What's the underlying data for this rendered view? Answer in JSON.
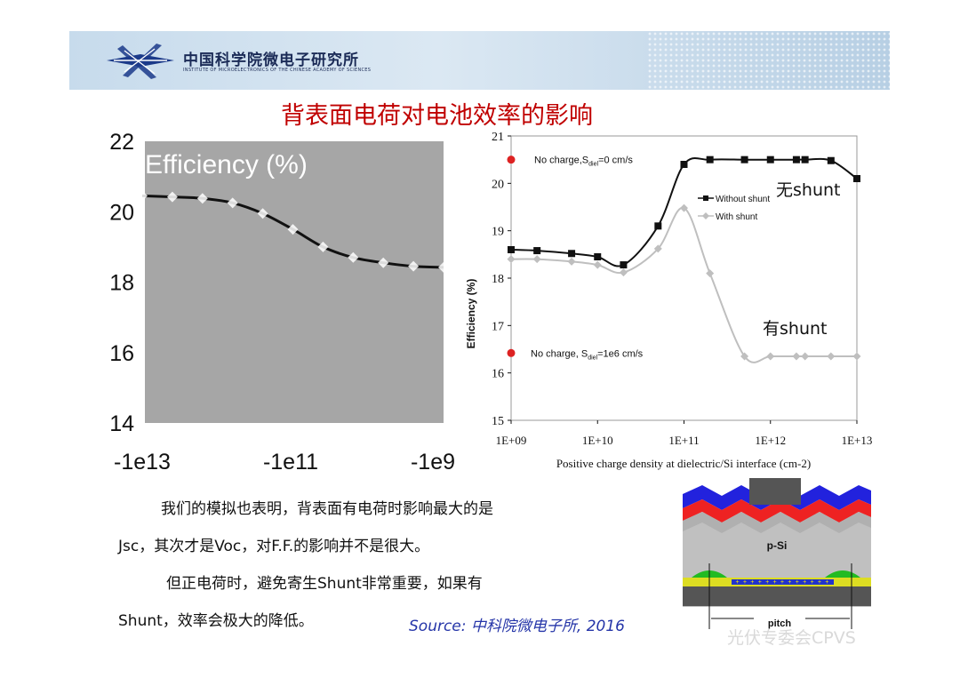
{
  "header": {
    "org_cn": "中国科学院微电子研究所",
    "org_en": "INSTITUTE OF MICROELECTRONICS OF THE CHINESE ACADEMY OF SCIENCES"
  },
  "title": "背表面电荷对电池效率的影响",
  "chart_data": [
    {
      "type": "line",
      "title": "Efficiency (%)",
      "categories": [
        "-1e13",
        "-1e11",
        "-1e9"
      ],
      "ylim": [
        14,
        22
      ],
      "y_ticks": [
        "22",
        "20",
        "18",
        "16",
        "14"
      ],
      "series": [
        {
          "name": "Efficiency",
          "x": [
            0,
            0.1,
            0.2,
            0.3,
            0.4,
            0.5,
            0.6,
            0.7,
            0.8,
            0.9,
            1.0
          ],
          "values": [
            20.45,
            20.42,
            20.38,
            20.25,
            19.95,
            19.5,
            19.0,
            18.7,
            18.55,
            18.45,
            18.42
          ]
        }
      ]
    },
    {
      "type": "line",
      "title": "",
      "xlabel": "Positive charge density at dielectric/Si interface (cm-2)",
      "ylabel": "Efficiency (%)",
      "x_ticks": [
        "1E+09",
        "1E+10",
        "1E+11",
        "1E+12",
        "1E+13"
      ],
      "y_ticks": [
        "21",
        "20",
        "19",
        "18",
        "17",
        "16",
        "15"
      ],
      "ylim": [
        15,
        21
      ],
      "xlim_log": [
        9,
        13
      ],
      "legend": [
        "Without shunt",
        "With shunt"
      ],
      "series": [
        {
          "name": "Without shunt",
          "x": [
            9.0,
            9.3,
            9.7,
            10.0,
            10.3,
            10.7,
            11.0,
            11.3,
            11.7,
            12.0,
            12.3,
            12.4,
            12.7,
            13.0
          ],
          "values": [
            18.6,
            18.58,
            18.52,
            18.45,
            18.28,
            19.1,
            20.4,
            20.5,
            20.5,
            20.5,
            20.5,
            20.5,
            20.48,
            20.1
          ]
        },
        {
          "name": "With shunt",
          "x": [
            9.0,
            9.3,
            9.7,
            10.0,
            10.3,
            10.7,
            11.0,
            11.3,
            11.7,
            12.0,
            12.3,
            12.4,
            12.7,
            13.0
          ],
          "values": [
            18.4,
            18.4,
            18.35,
            18.28,
            18.12,
            18.62,
            19.48,
            18.1,
            16.35,
            16.35,
            16.35,
            16.35,
            16.35,
            16.35
          ]
        }
      ],
      "markers": [
        {
          "label": "No charge,S",
          "sub": "diel",
          "rest": "=0 cm/s",
          "value": 20.5
        },
        {
          "label": "No charge, S",
          "sub": "diel",
          "rest": "=1e6 cm/s",
          "value": 16.42
        }
      ],
      "annotations": [
        "无shunt",
        "有shunt"
      ]
    }
  ],
  "diagram": {
    "label_psi": "p-Si",
    "label_pitch": "pitch"
  },
  "body": {
    "line1": "我们的模拟也表明，背表面有电荷时影响最大的是",
    "line2": "Jsc，其次才是Voc，对F.F.的影响并不是很大。",
    "line3": "但正电荷时，避免寄生Shunt非常重要，如果有",
    "line4": "Shunt，效率会极大的降低。"
  },
  "source": "Source: 中科院微电子所, 2016",
  "watermark": "光伏专委会CPVS",
  "colors": {
    "title_red": "#c00000",
    "source_blue": "#2535a8",
    "banner_blue": "#1b2b57"
  }
}
